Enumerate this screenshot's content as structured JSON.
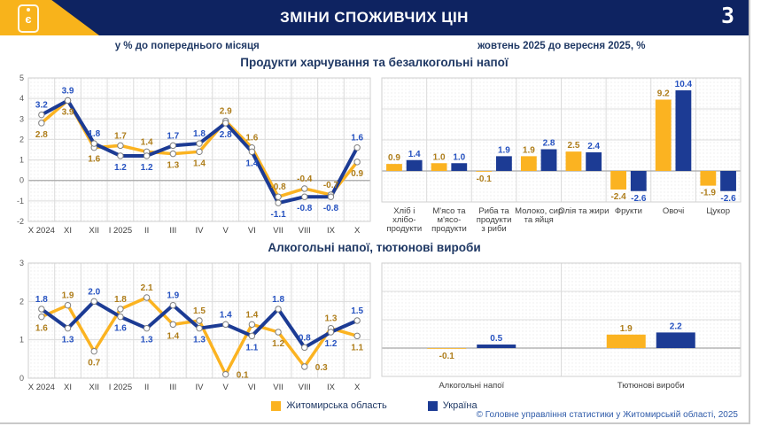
{
  "header": {
    "title": "ЗМІНИ СПОЖИВЧИХ ЦІН",
    "page_number": "3",
    "logo_glyph": "є"
  },
  "subtitles": {
    "left": "у % до попереднього місяця",
    "right": "жовтень 2025 до вересня 2025, %"
  },
  "colors": {
    "header_navy": "#0E2361",
    "accent_yellow": "#F8B31B",
    "title_navy": "#1F3864",
    "region_series": "#FBB321",
    "ukraine_series": "#1C3B94",
    "region_label": "#AE7D1A",
    "ukraine_label": "#2652C0",
    "footer_blue": "#2F5BA9"
  },
  "legend": {
    "items": [
      {
        "label": "Житомирська область",
        "color": "#FBB321"
      },
      {
        "label": "Україна",
        "color": "#1C3B94"
      }
    ]
  },
  "footer": {
    "copyright": "© Головне управління статистики у Житомирській області, 2025"
  },
  "chart_data": [
    {
      "type": "line",
      "title": "Продукти харчування та безалкогольні напої",
      "categories": [
        "X 2024",
        "XI",
        "XII",
        "I 2025",
        "II",
        "III",
        "IV",
        "V",
        "VI",
        "VII",
        "VIII",
        "IX",
        "X"
      ],
      "series": [
        {
          "name": "Житомирська область",
          "color": "#FBB321",
          "label_color": "#AE7D1A",
          "values": [
            2.8,
            3.9,
            1.6,
            1.7,
            1.4,
            1.3,
            1.4,
            2.9,
            1.6,
            -0.8,
            -0.4,
            -0.7,
            0.9
          ]
        },
        {
          "name": "Україна",
          "color": "#1C3B94",
          "label_color": "#2652C0",
          "values": [
            3.2,
            3.9,
            1.8,
            1.2,
            1.2,
            1.7,
            1.8,
            2.8,
            1.4,
            -1.1,
            -0.8,
            -0.8,
            1.6
          ]
        }
      ],
      "ylim": [
        -2,
        5
      ],
      "ytick_step": 1,
      "show_ytick_labels": true,
      "grid": true,
      "legend_position": "bottom-shared"
    },
    {
      "type": "bar",
      "title": "",
      "categories": [
        [
          "Хліб і",
          "хлібо-",
          "продукти"
        ],
        [
          "М'ясо та",
          "м'ясо-",
          "продукти"
        ],
        [
          "Риба та",
          "продукти",
          "з риби"
        ],
        [
          "Молоко, сир",
          "та яйця"
        ],
        [
          "Олія та жири"
        ],
        [
          "Фрукти"
        ],
        [
          "Овочі"
        ],
        [
          "Цукор"
        ]
      ],
      "series": [
        {
          "name": "Житомирська область",
          "color": "#FBB321",
          "label_color": "#AE7D1A",
          "values": [
            0.9,
            1.0,
            -0.1,
            1.9,
            2.5,
            -2.4,
            9.2,
            -1.9
          ]
        },
        {
          "name": "Україна",
          "color": "#1C3B94",
          "label_color": "#2652C0",
          "values": [
            1.4,
            1.0,
            1.9,
            2.8,
            2.4,
            -2.6,
            10.4,
            -2.6
          ]
        }
      ],
      "ylim": [
        -4,
        12
      ],
      "ytick_step": 4,
      "show_ytick_labels": false,
      "grid": true,
      "legend_position": "bottom-shared"
    },
    {
      "type": "line",
      "title": "Алкогольні напої, тютюнові вироби",
      "categories": [
        "X 2024",
        "XI",
        "XII",
        "I 2025",
        "II",
        "III",
        "IV",
        "V",
        "VI",
        "VII",
        "VIII",
        "IX",
        "X"
      ],
      "series": [
        {
          "name": "Житомирська область",
          "color": "#FBB321",
          "label_color": "#AE7D1A",
          "values": [
            1.6,
            1.9,
            0.7,
            1.8,
            2.1,
            1.4,
            1.5,
            0.1,
            1.4,
            1.2,
            0.3,
            1.3,
            1.1
          ]
        },
        {
          "name": "Україна",
          "color": "#1C3B94",
          "label_color": "#2652C0",
          "values": [
            1.8,
            1.3,
            2.0,
            1.6,
            1.3,
            1.9,
            1.3,
            1.4,
            1.1,
            1.8,
            0.8,
            1.2,
            1.5
          ]
        }
      ],
      "ylim": [
        0,
        3
      ],
      "ytick_step": 1,
      "show_ytick_labels": true,
      "grid": true,
      "legend_position": "bottom-shared"
    },
    {
      "type": "bar",
      "title": "",
      "categories": [
        [
          "Алкогольні напої"
        ],
        [
          "Тютюнові вироби"
        ]
      ],
      "series": [
        {
          "name": "Житомирська область",
          "color": "#FBB321",
          "label_color": "#AE7D1A",
          "values": [
            -0.1,
            1.9
          ]
        },
        {
          "name": "Україна",
          "color": "#1C3B94",
          "label_color": "#2652C0",
          "values": [
            0.5,
            2.2
          ]
        }
      ],
      "ylim": [
        -4,
        12
      ],
      "ytick_step": 4,
      "show_ytick_labels": false,
      "grid": true,
      "legend_position": "bottom-shared"
    }
  ]
}
